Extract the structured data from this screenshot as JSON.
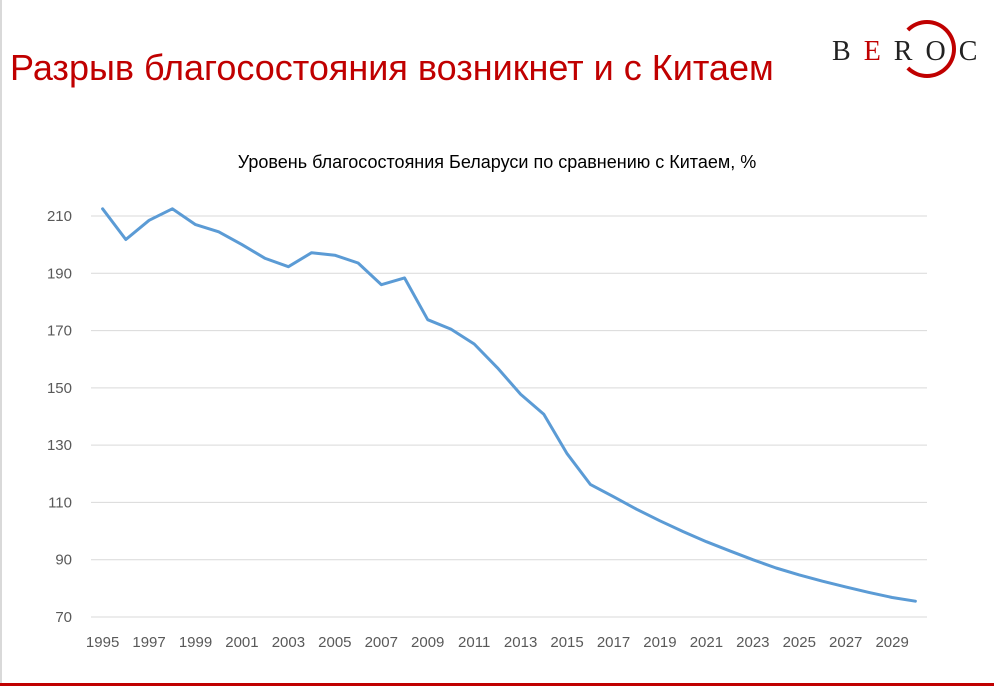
{
  "slide": {
    "title": "Разрыв благосостояния возникнет и с Китаем",
    "title_color": "#c00000",
    "accent_color": "#c00000"
  },
  "logo": {
    "letters": [
      "B",
      "E",
      "R",
      "O",
      "C"
    ],
    "letter_colors": [
      "#222222",
      "#c00000",
      "#222222",
      "#222222",
      "#222222"
    ],
    "ring_color": "#c00000"
  },
  "chart_data": {
    "type": "line",
    "title": "Уровень благосостояния Беларуси по сравнению с Китаем, %",
    "xlabel": "",
    "ylabel": "",
    "x": [
      1995,
      1996,
      1997,
      1998,
      1999,
      2000,
      2001,
      2002,
      2003,
      2004,
      2005,
      2006,
      2007,
      2008,
      2009,
      2010,
      2011,
      2012,
      2013,
      2014,
      2015,
      2016,
      2017,
      2018,
      2019,
      2020,
      2021,
      2022,
      2023,
      2024,
      2025,
      2026,
      2027,
      2028,
      2029,
      2030
    ],
    "series": [
      {
        "name": "",
        "color": "#5b9bd5",
        "values": [
          212.5,
          201.8,
          208.5,
          212.5,
          207.0,
          204.5,
          200.0,
          195.2,
          192.3,
          197.2,
          196.3,
          193.6,
          186.0,
          188.4,
          173.8,
          170.5,
          165.3,
          157.0,
          147.8,
          140.8,
          127.0,
          116.3,
          112.0,
          107.6,
          103.6,
          99.8,
          96.3,
          93.1,
          90.0,
          87.1,
          84.7,
          82.5,
          80.5,
          78.6,
          76.8,
          75.5
        ]
      }
    ],
    "x_tick_labels": [
      "1995",
      "1997",
      "1999",
      "2001",
      "2003",
      "2005",
      "2007",
      "2009",
      "2011",
      "2013",
      "2015",
      "2017",
      "2019",
      "2021",
      "2023",
      "2025",
      "2027",
      "2029"
    ],
    "y_tick_labels": [
      "70",
      "90",
      "110",
      "130",
      "150",
      "170",
      "190",
      "210"
    ],
    "y_ticks": [
      70,
      90,
      110,
      130,
      150,
      170,
      190,
      210
    ],
    "xlim": [
      1995,
      2030
    ],
    "ylim": [
      70,
      210
    ],
    "grid": true,
    "grid_color": "#d9d9d9",
    "legend": "none"
  }
}
